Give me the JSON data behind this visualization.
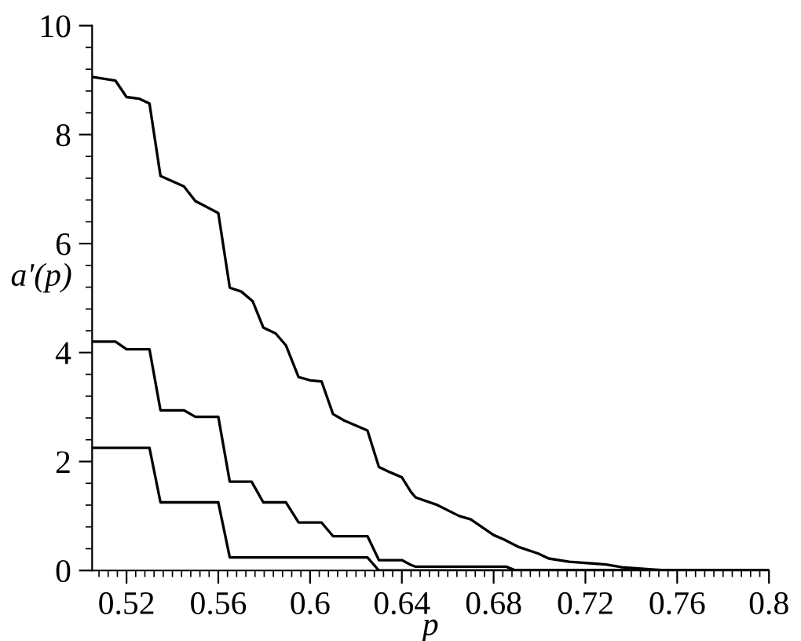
{
  "chart_data": {
    "type": "line",
    "xlabel": "p",
    "ylabel": "a'(p)",
    "xlim": [
      0.505,
      0.8
    ],
    "ylim": [
      0,
      10
    ],
    "xticks": [
      0.52,
      0.56,
      0.6,
      0.64,
      0.68,
      0.72,
      0.76,
      0.8
    ],
    "yticks": [
      0,
      2,
      4,
      6,
      8,
      10
    ],
    "grid": false,
    "marker": "none",
    "line_style": "solid",
    "series": [
      {
        "color": "#000000",
        "x": [
          0.505,
          0.5152,
          0.52,
          0.5254,
          0.53,
          0.5348,
          0.545,
          0.55,
          0.56,
          0.565,
          0.57,
          0.575,
          0.5796,
          0.585,
          0.5895,
          0.595,
          0.6,
          0.605,
          0.61,
          0.615,
          0.62,
          0.625,
          0.63,
          0.635,
          0.64,
          0.644,
          0.646,
          0.655,
          0.665,
          0.67,
          0.68,
          0.6845,
          0.691,
          0.6995,
          0.704,
          0.713,
          0.729,
          0.736,
          0.749,
          0.756,
          0.8
        ],
        "values": [
          9.06,
          8.99,
          8.69,
          8.66,
          8.57,
          7.24,
          7.05,
          6.78,
          6.56,
          5.19,
          5.12,
          4.94,
          4.46,
          4.35,
          4.13,
          3.55,
          3.49,
          3.47,
          2.87,
          2.75,
          2.66,
          2.57,
          1.9,
          1.8,
          1.71,
          1.44,
          1.34,
          1.21,
          1.0,
          0.94,
          0.65,
          0.57,
          0.43,
          0.31,
          0.22,
          0.16,
          0.11,
          0.06,
          0.02,
          0,
          0
        ]
      },
      {
        "color": "#000000",
        "x": [
          0.505,
          0.5152,
          0.52,
          0.53,
          0.5348,
          0.545,
          0.55,
          0.56,
          0.565,
          0.5745,
          0.5796,
          0.5895,
          0.595,
          0.605,
          0.61,
          0.625,
          0.63,
          0.64,
          0.644,
          0.646,
          0.6855,
          0.689,
          0.8
        ],
        "values": [
          4.2,
          4.2,
          4.06,
          4.06,
          2.94,
          2.94,
          2.82,
          2.82,
          1.63,
          1.63,
          1.25,
          1.25,
          0.88,
          0.88,
          0.63,
          0.63,
          0.19,
          0.19,
          0.1,
          0.07,
          0.07,
          0.01,
          0
        ]
      },
      {
        "color": "#000000",
        "x": [
          0.505,
          0.53,
          0.5348,
          0.56,
          0.565,
          0.625,
          0.63,
          0.8
        ],
        "values": [
          2.25,
          2.25,
          1.25,
          1.25,
          0.24,
          0.24,
          0,
          0
        ]
      }
    ]
  }
}
